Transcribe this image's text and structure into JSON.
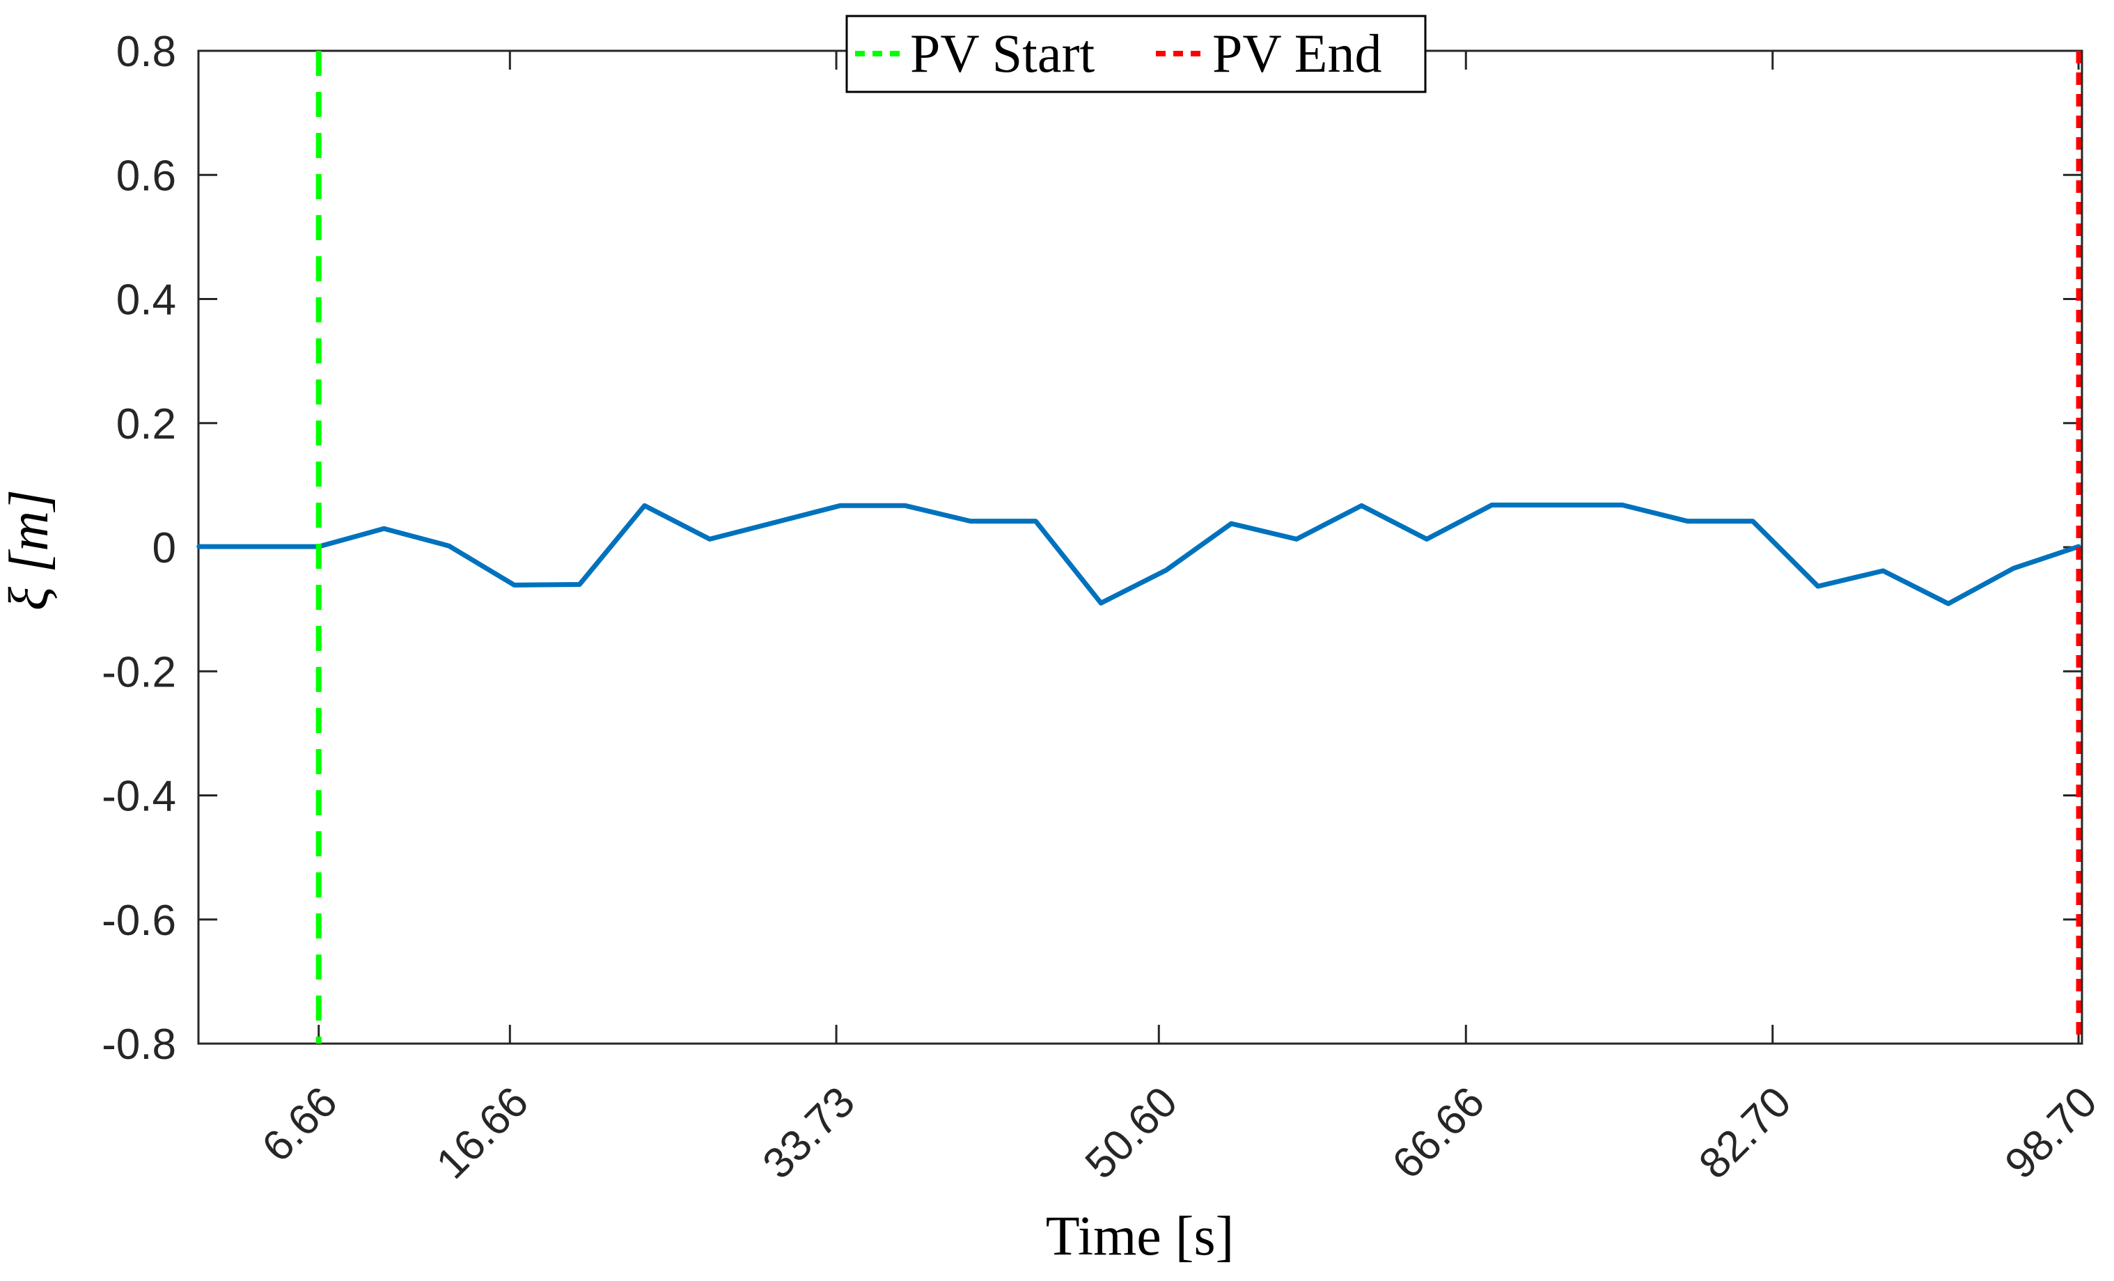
{
  "figure": {
    "background": "#FFFFFF",
    "axis_color": "#262626",
    "text_color": "#000000"
  },
  "legend": {
    "position": "north",
    "entries": [
      {
        "label": "PV Start",
        "color": "#00FF00",
        "line_style": "dashed"
      },
      {
        "label": "PV End",
        "color": "#FF0000",
        "line_style": "dashed"
      }
    ]
  },
  "chart_data": {
    "type": "line",
    "title": "",
    "xlabel": "Time [s]",
    "ylabel": "ξ [m]",
    "xlim": [
      0.37,
      98.88
    ],
    "ylim": [
      -0.8,
      0.8
    ],
    "grid": false,
    "box": true,
    "legend_position": "north",
    "xtick_values": [
      6.66,
      16.66,
      33.73,
      50.6,
      66.66,
      82.7,
      98.7
    ],
    "xtick_labels": [
      "6.66",
      "16.66",
      "33.73",
      "50.60",
      "66.66",
      "82.70",
      "98.70"
    ],
    "ytick_values": [
      -0.8,
      -0.6,
      -0.4,
      -0.2,
      0,
      0.2,
      0.4,
      0.6,
      0.8
    ],
    "ytick_labels": [
      "-0.8",
      "-0.6",
      "-0.4",
      "-0.2",
      "0",
      "0.2",
      "0.4",
      "0.6",
      "0.8"
    ],
    "series": [
      {
        "name": "ξ",
        "color": "#0072BD",
        "x": [
          0.4,
          3.5,
          6.66,
          10.07,
          13.48,
          16.89,
          20.3,
          23.7,
          27.11,
          30.52,
          33.93,
          37.34,
          40.75,
          44.16,
          47.57,
          50.98,
          54.39,
          57.8,
          61.2,
          64.61,
          68.02,
          71.43,
          74.84,
          78.25,
          81.66,
          85.07,
          88.48,
          91.89,
          95.3,
          98.7
        ],
        "y": [
          0.001,
          0.001,
          0.001,
          0.03,
          0.002,
          -0.061,
          -0.06,
          0.067,
          0.013,
          0.04,
          0.067,
          0.067,
          0.042,
          0.042,
          -0.09,
          -0.037,
          0.038,
          0.013,
          0.067,
          0.013,
          0.068,
          0.068,
          0.068,
          0.042,
          0.042,
          -0.063,
          -0.038,
          -0.091,
          -0.034,
          0.001
        ]
      }
    ],
    "events": [
      {
        "name": "PV Start",
        "x": 6.66,
        "color": "#00FF00",
        "dash": "36 23",
        "width": 8
      },
      {
        "name": "PV End",
        "x": 98.7,
        "color": "#FF0000",
        "dash": "18 13",
        "width": 7
      }
    ]
  }
}
